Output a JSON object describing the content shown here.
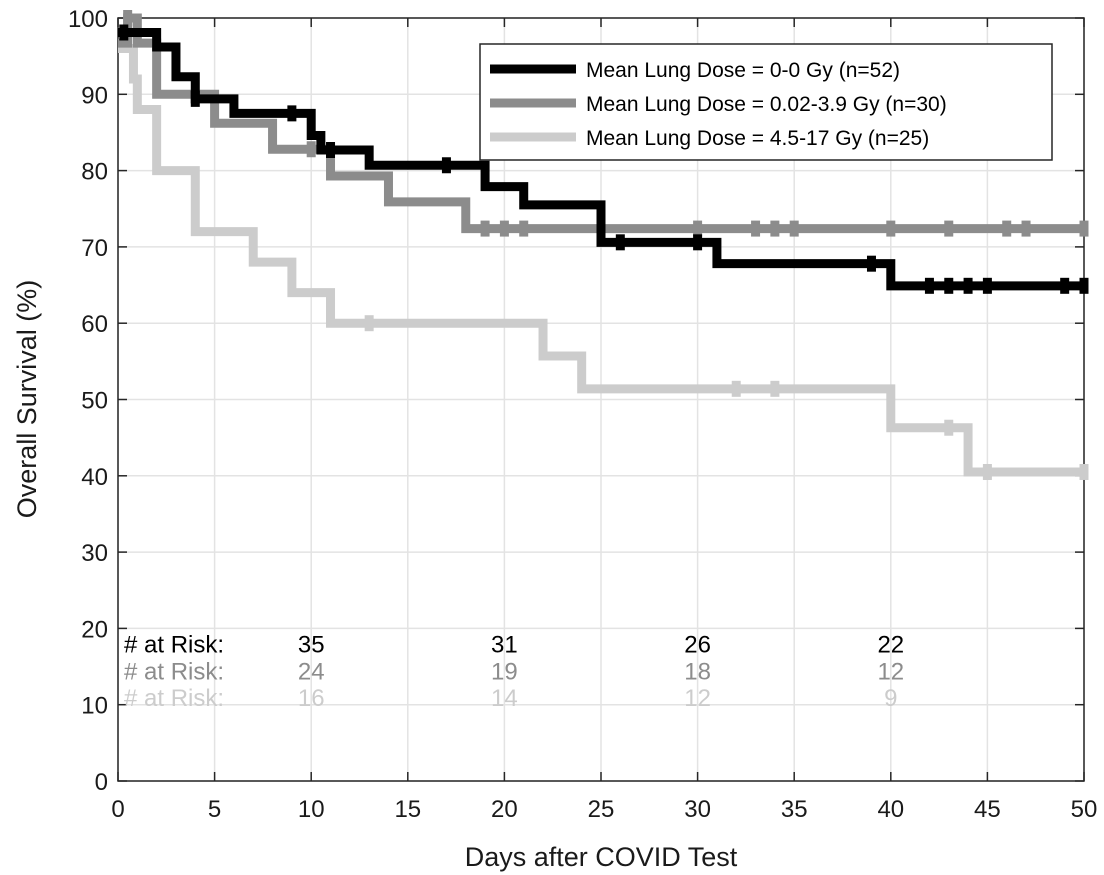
{
  "chart_data": {
    "type": "line",
    "subtype": "kaplan-meier step curves with censor marks",
    "title": "",
    "xlabel": "Days after COVID Test",
    "ylabel": "Overall Survival (%)",
    "xlim": [
      0,
      50
    ],
    "ylim": [
      0,
      100
    ],
    "x_ticks": [
      0,
      5,
      10,
      15,
      20,
      25,
      30,
      35,
      40,
      45,
      50
    ],
    "y_ticks": [
      0,
      10,
      20,
      30,
      40,
      50,
      60,
      70,
      80,
      90,
      100
    ],
    "grid": true,
    "legend_position": "top-right",
    "series": [
      {
        "name": "Mean Lung Dose = 0-0 Gy (n=52)",
        "color": "#000000",
        "steps": [
          [
            0,
            98.1
          ],
          [
            2,
            96.2
          ],
          [
            3,
            92.3
          ],
          [
            4,
            89.4
          ],
          [
            6,
            87.5
          ],
          [
            10,
            84.6
          ],
          [
            10.5,
            82.7
          ],
          [
            13,
            80.7
          ],
          [
            19,
            77.9
          ],
          [
            21,
            75.5
          ],
          [
            25,
            70.6
          ],
          [
            31,
            67.8
          ],
          [
            40,
            64.9
          ],
          [
            50,
            64.9
          ]
        ],
        "censored": [
          [
            0.3,
            98.1
          ],
          [
            4,
            89.4
          ],
          [
            9,
            87.5
          ],
          [
            11,
            82.7
          ],
          [
            17,
            80.7
          ],
          [
            26,
            70.6
          ],
          [
            30,
            70.6
          ],
          [
            39,
            67.8
          ],
          [
            42,
            64.9
          ],
          [
            43,
            64.9
          ],
          [
            44,
            64.9
          ],
          [
            45,
            64.9
          ],
          [
            49,
            64.9
          ],
          [
            50,
            64.9
          ]
        ]
      },
      {
        "name": "Mean Lung Dose = 0.02-3.9 Gy (n=30)",
        "color": "#8c8c8c",
        "steps": [
          [
            0,
            96.7
          ],
          [
            0.5,
            100
          ],
          [
            1,
            96.7
          ],
          [
            2,
            90
          ],
          [
            5,
            86.2
          ],
          [
            8,
            82.8
          ],
          [
            11,
            79.3
          ],
          [
            14,
            75.9
          ],
          [
            18,
            72.4
          ],
          [
            50,
            72.4
          ]
        ],
        "censored": [
          [
            0.5,
            100
          ],
          [
            10,
            82.8
          ],
          [
            19,
            72.4
          ],
          [
            20,
            72.4
          ],
          [
            21,
            72.4
          ],
          [
            30,
            72.4
          ],
          [
            33,
            72.4
          ],
          [
            34,
            72.4
          ],
          [
            35,
            72.4
          ],
          [
            40,
            72.4
          ],
          [
            43,
            72.4
          ],
          [
            46,
            72.4
          ],
          [
            47,
            72.4
          ],
          [
            50,
            72.4
          ]
        ]
      },
      {
        "name": "Mean Lung Dose = 4.5-17 Gy (n=25)",
        "color": "#cccccc",
        "steps": [
          [
            0,
            96
          ],
          [
            0.8,
            92
          ],
          [
            1,
            88
          ],
          [
            2,
            80
          ],
          [
            4,
            72
          ],
          [
            7,
            68
          ],
          [
            9,
            64
          ],
          [
            11,
            60
          ],
          [
            22,
            55.7
          ],
          [
            24,
            51.4
          ],
          [
            40,
            46.3
          ],
          [
            44,
            40.5
          ],
          [
            50,
            40.5
          ]
        ],
        "censored": [
          [
            13,
            60
          ],
          [
            32,
            51.4
          ],
          [
            34,
            51.4
          ],
          [
            43,
            46.3
          ],
          [
            45,
            40.5
          ],
          [
            50,
            40.5
          ]
        ]
      }
    ],
    "risk_table": {
      "label": "# at Risk:",
      "times": [
        10,
        20,
        30,
        40
      ],
      "rows": [
        {
          "color": "#000000",
          "y_level": 18,
          "counts": [
            "35",
            "31",
            "26",
            "22"
          ]
        },
        {
          "color": "#8c8c8c",
          "y_level": 14.5,
          "counts": [
            "24",
            "19",
            "18",
            "12"
          ]
        },
        {
          "color": "#cccccc",
          "y_level": 11,
          "counts": [
            "16",
            "14",
            "12",
            "9"
          ]
        }
      ]
    }
  }
}
